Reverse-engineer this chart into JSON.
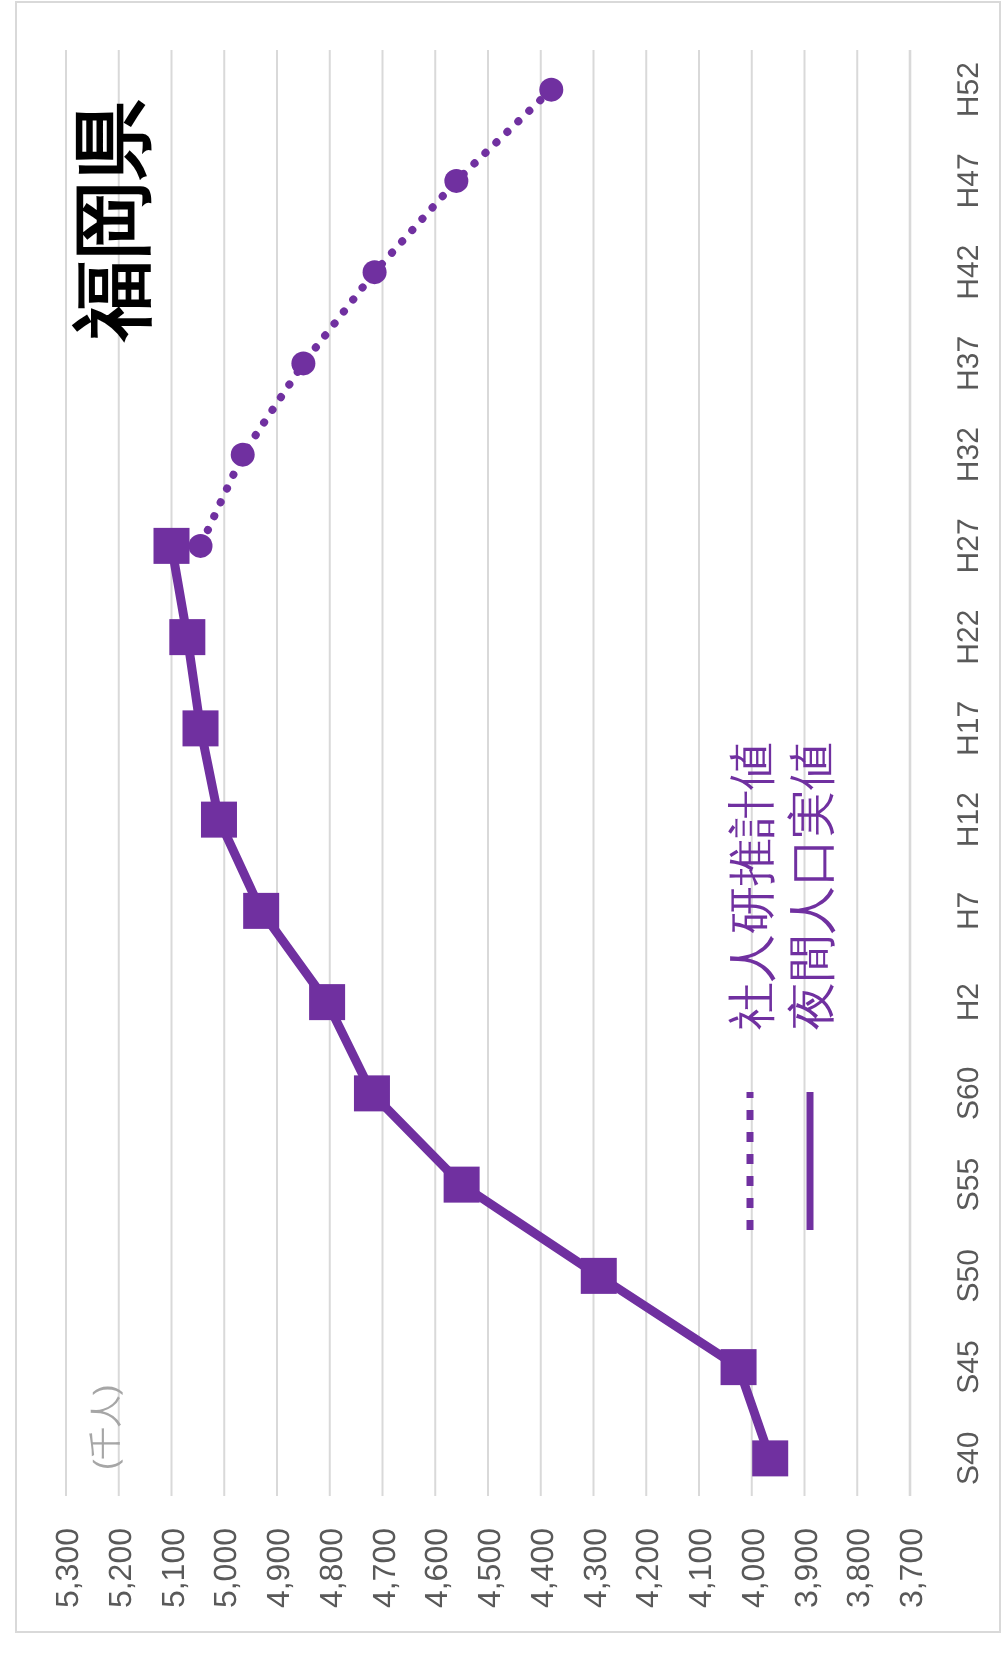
{
  "chart_data": {
    "type": "line",
    "orientation": "horizontal",
    "title": "福岡県",
    "annotations": [
      "(千人)"
    ],
    "categories": [
      "H52",
      "H47",
      "H42",
      "H37",
      "H32",
      "H27",
      "H22",
      "H17",
      "H12",
      "H7",
      "H2",
      "S60",
      "S55",
      "S50",
      "S45",
      "S40"
    ],
    "series": [
      {
        "name": "社人研推計値",
        "color": "#7030a0",
        "marker": "circle",
        "line_style": "dotted",
        "values": [
          4380,
          4560,
          4715,
          4850,
          4965,
          5045,
          null,
          null,
          null,
          null,
          null,
          null,
          null,
          null,
          null,
          null
        ]
      },
      {
        "name": "夜間人口実値",
        "color": "#7030a0",
        "marker": "square",
        "line_style": "solid",
        "values": [
          null,
          null,
          null,
          null,
          null,
          5100,
          5070,
          5045,
          5010,
          4930,
          4805,
          4720,
          4550,
          4290,
          4025,
          3965
        ]
      }
    ],
    "xlim": [
      5300,
      3700
    ],
    "xticks": [
      {
        "value": 5300,
        "label": "5,300"
      },
      {
        "value": 5200,
        "label": "5,200"
      },
      {
        "value": 5100,
        "label": "5,100"
      },
      {
        "value": 5000,
        "label": "5,000"
      },
      {
        "value": 4900,
        "label": "4,900"
      },
      {
        "value": 4800,
        "label": "4,800"
      },
      {
        "value": 4700,
        "label": "4,700"
      },
      {
        "value": 4600,
        "label": "4,600"
      },
      {
        "value": 4500,
        "label": "4,500"
      },
      {
        "value": 4400,
        "label": "4,400"
      },
      {
        "value": 4300,
        "label": "4,300"
      },
      {
        "value": 4200,
        "label": "4,200"
      },
      {
        "value": 4100,
        "label": "4,100"
      },
      {
        "value": 4000,
        "label": "4,000"
      },
      {
        "value": 3900,
        "label": "3,900"
      },
      {
        "value": 3800,
        "label": "3,800"
      },
      {
        "value": 3700,
        "label": "3,700"
      }
    ],
    "grid": "x",
    "legend": "right"
  }
}
